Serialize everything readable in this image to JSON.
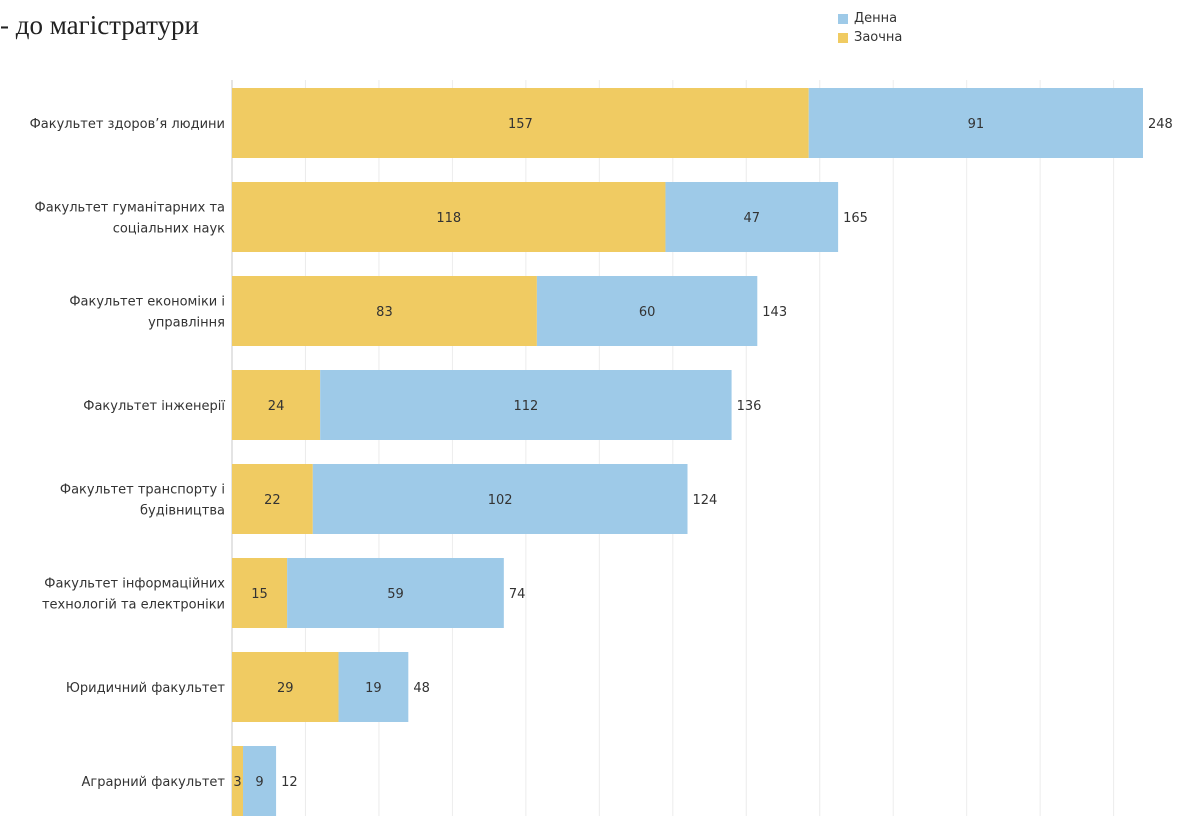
{
  "page": {
    "title": "- до магістратури"
  },
  "colors": {
    "series": [
      "#F0CB62",
      "#9ECAE8"
    ],
    "grid": "#ECECEC",
    "axis": "#C8C8C8",
    "text": "#333333"
  },
  "legend": [
    {
      "name": "Денна",
      "color": "#9ECAE8"
    },
    {
      "name": "Заочна",
      "color": "#F0CB62"
    }
  ],
  "chart_data": {
    "type": "bar",
    "orientation": "horizontal",
    "stacked": true,
    "title": "- до магістратури",
    "xlabel": "",
    "ylabel": "",
    "xlim": [
      0,
      260
    ],
    "grid": true,
    "legend_position": "top-right",
    "categories": [
      [
        "Факультет здоров’я людини"
      ],
      [
        "Факультет гуманітарних та",
        "соціальних наук"
      ],
      [
        "Факультет економіки і",
        "управління"
      ],
      [
        "Факультет інженерії"
      ],
      [
        "Факультет транспорту і",
        "будівництва"
      ],
      [
        "Факультет інформаційних",
        "технологій та електроніки"
      ],
      [
        "Юридичний факультет"
      ],
      [
        "Аграрний факультет"
      ]
    ],
    "series": [
      {
        "name": "Заочна",
        "values": [
          157,
          118,
          83,
          24,
          22,
          15,
          29,
          3
        ]
      },
      {
        "name": "Денна",
        "values": [
          91,
          47,
          60,
          112,
          102,
          59,
          19,
          9
        ]
      }
    ],
    "totals": [
      248,
      165,
      143,
      136,
      124,
      74,
      48,
      12
    ]
  }
}
